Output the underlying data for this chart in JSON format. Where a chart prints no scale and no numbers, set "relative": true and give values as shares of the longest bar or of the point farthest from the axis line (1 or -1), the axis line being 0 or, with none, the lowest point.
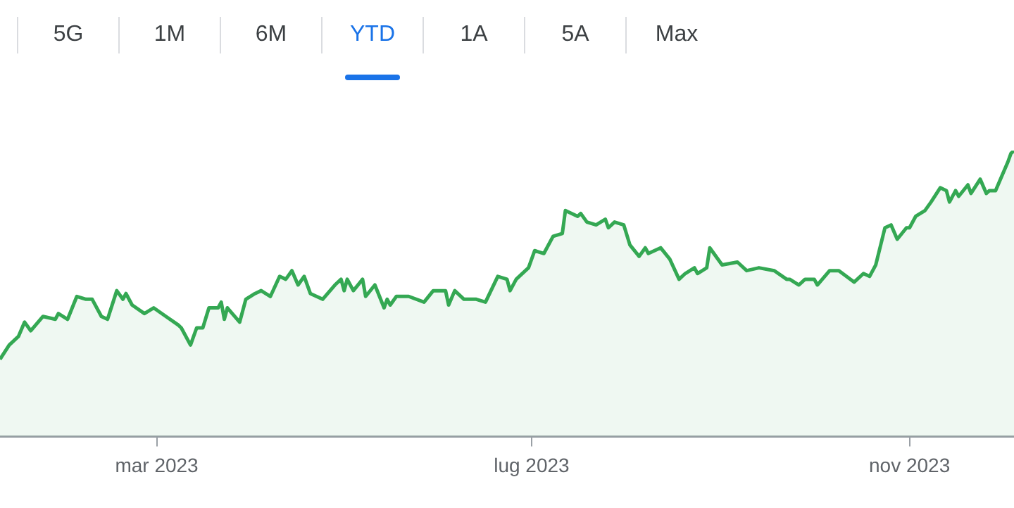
{
  "chart_data": {
    "type": "area",
    "relative": true,
    "annotations": [
      "5G",
      "1M",
      "6M",
      "YTD",
      "1A",
      "5A",
      "Max"
    ],
    "xlim": [
      "2023-01-09",
      "2023-12-05"
    ],
    "xticks": [
      {
        "value": "2023-03-01",
        "label": "mar 2023"
      },
      {
        "value": "2023-07-01",
        "label": "lug 2023"
      },
      {
        "value": "2023-11-01",
        "label": "nov 2023"
      }
    ],
    "legend": false,
    "marker": "none",
    "line_style": "solid",
    "series": [
      {
        "color": "#34a853",
        "x": [
          "2023-01-09",
          "2023-01-12",
          "2023-01-15",
          "2023-01-17",
          "2023-01-19",
          "2023-01-23",
          "2023-01-27",
          "2023-01-28",
          "2023-01-31",
          "2023-02-03",
          "2023-02-06",
          "2023-02-08",
          "2023-02-11",
          "2023-02-13",
          "2023-02-16",
          "2023-02-18",
          "2023-02-19",
          "2023-02-21",
          "2023-02-25",
          "2023-02-28",
          "2023-03-04",
          "2023-03-08",
          "2023-03-09",
          "2023-03-12",
          "2023-03-14",
          "2023-03-16",
          "2023-03-18",
          "2023-03-21",
          "2023-03-22",
          "2023-03-23",
          "2023-03-24",
          "2023-03-28",
          "2023-03-30",
          "2023-04-02",
          "2023-04-04",
          "2023-04-07",
          "2023-04-10",
          "2023-04-12",
          "2023-04-14",
          "2023-04-16",
          "2023-04-18",
          "2023-04-20",
          "2023-04-24",
          "2023-04-28",
          "2023-04-30",
          "2023-05-01",
          "2023-05-02",
          "2023-05-04",
          "2023-05-07",
          "2023-05-08",
          "2023-05-11",
          "2023-05-14",
          "2023-05-15",
          "2023-05-16",
          "2023-05-18",
          "2023-05-22",
          "2023-05-27",
          "2023-05-30",
          "2023-06-03",
          "2023-06-04",
          "2023-06-06",
          "2023-06-09",
          "2023-06-13",
          "2023-06-16",
          "2023-06-20",
          "2023-06-23",
          "2023-06-24",
          "2023-06-26",
          "2023-06-29",
          "2023-06-30",
          "2023-07-02",
          "2023-07-05",
          "2023-07-08",
          "2023-07-11",
          "2023-07-12",
          "2023-07-16",
          "2023-07-17",
          "2023-07-19",
          "2023-07-22",
          "2023-07-25",
          "2023-07-26",
          "2023-07-28",
          "2023-07-31",
          "2023-08-02",
          "2023-08-05",
          "2023-08-07",
          "2023-08-08",
          "2023-08-12",
          "2023-08-15",
          "2023-08-18",
          "2023-08-20",
          "2023-08-23",
          "2023-08-24",
          "2023-08-27",
          "2023-08-28",
          "2023-09-01",
          "2023-09-06",
          "2023-09-09",
          "2023-09-13",
          "2023-09-18",
          "2023-09-22",
          "2023-09-23",
          "2023-09-26",
          "2023-09-28",
          "2023-10-01",
          "2023-10-02",
          "2023-10-06",
          "2023-10-09",
          "2023-10-14",
          "2023-10-17",
          "2023-10-19",
          "2023-10-21",
          "2023-10-24",
          "2023-10-26",
          "2023-10-28",
          "2023-10-31",
          "2023-11-01",
          "2023-11-03",
          "2023-11-06",
          "2023-11-08",
          "2023-11-11",
          "2023-11-13",
          "2023-11-14",
          "2023-11-16",
          "2023-11-17",
          "2023-11-20",
          "2023-11-21",
          "2023-11-24",
          "2023-11-26",
          "2023-11-27",
          "2023-11-29",
          "2023-12-03",
          "2023-12-04",
          "2023-12-05"
        ],
        "values": [
          0.27,
          0.32,
          0.35,
          0.4,
          0.37,
          0.42,
          0.41,
          0.43,
          0.41,
          0.49,
          0.48,
          0.48,
          0.42,
          0.41,
          0.51,
          0.48,
          0.5,
          0.46,
          0.43,
          0.45,
          0.42,
          0.39,
          0.38,
          0.32,
          0.38,
          0.38,
          0.45,
          0.45,
          0.47,
          0.41,
          0.45,
          0.4,
          0.48,
          0.5,
          0.51,
          0.49,
          0.56,
          0.55,
          0.58,
          0.53,
          0.56,
          0.5,
          0.48,
          0.53,
          0.55,
          0.51,
          0.55,
          0.51,
          0.55,
          0.49,
          0.53,
          0.45,
          0.48,
          0.46,
          0.49,
          0.49,
          0.47,
          0.51,
          0.51,
          0.46,
          0.51,
          0.48,
          0.48,
          0.47,
          0.56,
          0.55,
          0.51,
          0.55,
          0.58,
          0.59,
          0.65,
          0.64,
          0.7,
          0.71,
          0.79,
          0.77,
          0.78,
          0.75,
          0.74,
          0.76,
          0.73,
          0.75,
          0.74,
          0.67,
          0.63,
          0.66,
          0.64,
          0.66,
          0.62,
          0.55,
          0.57,
          0.59,
          0.57,
          0.59,
          0.66,
          0.6,
          0.61,
          0.58,
          0.59,
          0.58,
          0.55,
          0.55,
          0.53,
          0.55,
          0.55,
          0.53,
          0.58,
          0.58,
          0.54,
          0.57,
          0.56,
          0.6,
          0.73,
          0.74,
          0.69,
          0.73,
          0.73,
          0.77,
          0.79,
          0.82,
          0.87,
          0.86,
          0.82,
          0.86,
          0.84,
          0.88,
          0.85,
          0.9,
          0.85,
          0.86,
          0.86,
          0.96,
          0.99,
          1
        ]
      }
    ]
  }
}
